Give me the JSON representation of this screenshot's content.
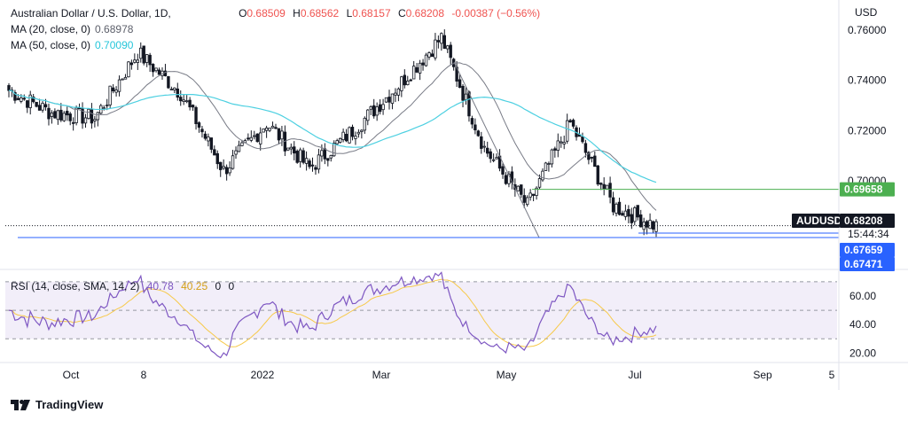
{
  "header": {
    "symbol_title": "Australian Dollar / U.S. Dollar, 1D,",
    "ohlc": {
      "open_label": "O",
      "open": "0.68509",
      "high_label": "H",
      "high": "0.68562",
      "low_label": "L",
      "low": "0.68157",
      "close_label": "C",
      "close": "0.68208",
      "change": "-0.00387 (−0.56%)"
    },
    "ma20": {
      "label": "MA (20, close, 0)",
      "value": "0.68978"
    },
    "ma50": {
      "label": "MA (50, close, 0)",
      "value": "0.70090"
    }
  },
  "price_axis": {
    "currency": "USD",
    "ticks": [
      "0.76000",
      "0.74000",
      "0.72000",
      "0.70000"
    ],
    "tick_values": [
      0.76,
      0.74,
      0.72,
      0.7
    ],
    "badges": {
      "green_level": "0.69658",
      "symbol": "AUDUSD",
      "last_price": "0.68208",
      "countdown": "15:44:34",
      "blue_level_1": "0.67659",
      "blue_level_2": "0.67471"
    }
  },
  "rsi_panel": {
    "label": "RSI (14, close, SMA, 14, 2)",
    "rsi_value": "40.78",
    "sma_value": "40.25",
    "extra_1": "0",
    "extra_2": "0",
    "ticks": [
      "60.00",
      "40.00",
      "20.00"
    ],
    "tick_values": [
      60,
      40,
      20
    ],
    "upper_band": 70,
    "lower_band": 30
  },
  "time_axis": {
    "labels": [
      "Oct",
      "8",
      "2022",
      "Mar",
      "May",
      "Jul",
      "Sep",
      "5"
    ]
  },
  "footer": {
    "brand": "TradingView"
  },
  "colors": {
    "up": "#26a69a",
    "candle": "#131722",
    "ma20": "#787b86",
    "ma50": "#4dd0e1",
    "green_line": "#4caf50",
    "blue_line": "#2962ff",
    "rsi_line": "#7e57c2",
    "rsi_sma": "#f7c948",
    "rsi_band": "#ede7f6"
  },
  "chart_data": {
    "type": "candlestick",
    "symbol": "AUDUSD",
    "timeframe": "1D",
    "approx_close_path": [
      {
        "t": "Sep 2021",
        "close": 0.736
      },
      {
        "t": "Late Sep 2021",
        "close": 0.727
      },
      {
        "t": "Oct 2021",
        "close": 0.725
      },
      {
        "t": "Late Oct 2021",
        "close": 0.751
      },
      {
        "t": "Nov 2021",
        "close": 0.735
      },
      {
        "t": "Dec 2021",
        "close": 0.704
      },
      {
        "t": "Early Jan 2022",
        "close": 0.723
      },
      {
        "t": "Late Jan 2022",
        "close": 0.705
      },
      {
        "t": "Feb 2022",
        "close": 0.721
      },
      {
        "t": "Mar 2022",
        "close": 0.738
      },
      {
        "t": "Early Apr 2022",
        "close": 0.757
      },
      {
        "t": "Late Apr 2022",
        "close": 0.713
      },
      {
        "t": "Mid May 2022",
        "close": 0.69
      },
      {
        "t": "Early Jun 2022",
        "close": 0.723
      },
      {
        "t": "Late Jun 2022",
        "close": 0.69
      },
      {
        "t": "Early Jul 2022",
        "close": 0.682
      }
    ],
    "ylim": [
      0.665,
      0.772
    ],
    "horizontal_levels": [
      0.69658,
      0.67659,
      0.67471
    ],
    "rsi_ylim": [
      14,
      78
    ]
  }
}
